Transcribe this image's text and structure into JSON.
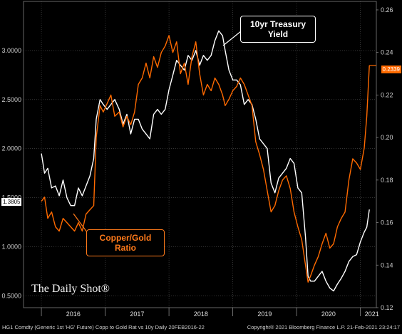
{
  "chart_data": {
    "type": "line",
    "x_years": [
      "2016",
      "2017",
      "2018",
      "2019",
      "2020",
      "2021"
    ],
    "left_axis": {
      "ticks": [
        "0.5000",
        "1.0000",
        "1.5000",
        "2.0000",
        "2.5000",
        "3.0000"
      ],
      "ylim": [
        0.38,
        3.5
      ]
    },
    "right_axis": {
      "ticks": [
        "0.12",
        "0.14",
        "0.16",
        "0.18",
        "0.20",
        "0.22",
        "0.24",
        "0.26"
      ],
      "ylim": [
        0.12,
        0.264
      ]
    },
    "series": [
      {
        "name": "10yr Treasury Yield",
        "axis": "left",
        "color": "#ffffff",
        "last_value": "1.3805",
        "points": [
          [
            2016.0,
            1.95
          ],
          [
            2016.05,
            1.75
          ],
          [
            2016.1,
            1.8
          ],
          [
            2016.16,
            1.6
          ],
          [
            2016.22,
            1.62
          ],
          [
            2016.28,
            1.52
          ],
          [
            2016.34,
            1.68
          ],
          [
            2016.4,
            1.5
          ],
          [
            2016.46,
            1.42
          ],
          [
            2016.52,
            1.42
          ],
          [
            2016.58,
            1.6
          ],
          [
            2016.64,
            1.52
          ],
          [
            2016.7,
            1.62
          ],
          [
            2016.76,
            1.72
          ],
          [
            2016.82,
            1.9
          ],
          [
            2016.86,
            2.3
          ],
          [
            2016.92,
            2.5
          ],
          [
            2016.97,
            2.45
          ],
          [
            2017.03,
            2.4
          ],
          [
            2017.09,
            2.45
          ],
          [
            2017.15,
            2.5
          ],
          [
            2017.22,
            2.4
          ],
          [
            2017.28,
            2.25
          ],
          [
            2017.34,
            2.35
          ],
          [
            2017.4,
            2.15
          ],
          [
            2017.46,
            2.3
          ],
          [
            2017.52,
            2.3
          ],
          [
            2017.58,
            2.2
          ],
          [
            2017.64,
            2.15
          ],
          [
            2017.7,
            2.1
          ],
          [
            2017.76,
            2.35
          ],
          [
            2017.82,
            2.4
          ],
          [
            2017.88,
            2.35
          ],
          [
            2017.94,
            2.4
          ],
          [
            2018.0,
            2.6
          ],
          [
            2018.06,
            2.75
          ],
          [
            2018.12,
            2.9
          ],
          [
            2018.18,
            2.85
          ],
          [
            2018.24,
            2.8
          ],
          [
            2018.3,
            2.95
          ],
          [
            2018.36,
            2.9
          ],
          [
            2018.42,
            3.0
          ],
          [
            2018.48,
            2.85
          ],
          [
            2018.54,
            2.95
          ],
          [
            2018.6,
            2.9
          ],
          [
            2018.66,
            2.95
          ],
          [
            2018.72,
            3.1
          ],
          [
            2018.78,
            3.2
          ],
          [
            2018.84,
            3.15
          ],
          [
            2018.88,
            3.0
          ],
          [
            2018.94,
            2.8
          ],
          [
            2019.0,
            2.7
          ],
          [
            2019.06,
            2.7
          ],
          [
            2019.12,
            2.65
          ],
          [
            2019.18,
            2.45
          ],
          [
            2019.24,
            2.5
          ],
          [
            2019.3,
            2.45
          ],
          [
            2019.36,
            2.3
          ],
          [
            2019.42,
            2.1
          ],
          [
            2019.48,
            2.05
          ],
          [
            2019.54,
            2.0
          ],
          [
            2019.6,
            1.65
          ],
          [
            2019.66,
            1.55
          ],
          [
            2019.72,
            1.7
          ],
          [
            2019.78,
            1.75
          ],
          [
            2019.84,
            1.8
          ],
          [
            2019.9,
            1.9
          ],
          [
            2019.96,
            1.85
          ],
          [
            2020.02,
            1.6
          ],
          [
            2020.08,
            1.55
          ],
          [
            2020.14,
            1.1
          ],
          [
            2020.18,
            0.7
          ],
          [
            2020.22,
            0.65
          ],
          [
            2020.28,
            0.65
          ],
          [
            2020.34,
            0.7
          ],
          [
            2020.4,
            0.75
          ],
          [
            2020.46,
            0.65
          ],
          [
            2020.52,
            0.58
          ],
          [
            2020.58,
            0.55
          ],
          [
            2020.64,
            0.62
          ],
          [
            2020.7,
            0.68
          ],
          [
            2020.76,
            0.75
          ],
          [
            2020.82,
            0.85
          ],
          [
            2020.88,
            0.9
          ],
          [
            2020.94,
            0.92
          ],
          [
            2021.0,
            1.05
          ],
          [
            2021.06,
            1.15
          ],
          [
            2021.1,
            1.2
          ],
          [
            2021.14,
            1.38
          ]
        ]
      },
      {
        "name": "Copper/Gold Ratio",
        "axis": "right",
        "color": "#ff6a00",
        "last_value": "0.2339",
        "points": [
          [
            2016.0,
            0.17
          ],
          [
            2016.05,
            0.172
          ],
          [
            2016.1,
            0.162
          ],
          [
            2016.16,
            0.165
          ],
          [
            2016.22,
            0.158
          ],
          [
            2016.28,
            0.156
          ],
          [
            2016.34,
            0.162
          ],
          [
            2016.4,
            0.16
          ],
          [
            2016.46,
            0.158
          ],
          [
            2016.52,
            0.156
          ],
          [
            2016.58,
            0.16
          ],
          [
            2016.64,
            0.156
          ],
          [
            2016.7,
            0.164
          ],
          [
            2016.76,
            0.166
          ],
          [
            2016.82,
            0.168
          ],
          [
            2016.86,
            0.2
          ],
          [
            2016.92,
            0.215
          ],
          [
            2016.97,
            0.212
          ],
          [
            2017.03,
            0.216
          ],
          [
            2017.09,
            0.22
          ],
          [
            2017.15,
            0.21
          ],
          [
            2017.22,
            0.212
          ],
          [
            2017.28,
            0.205
          ],
          [
            2017.34,
            0.21
          ],
          [
            2017.4,
            0.206
          ],
          [
            2017.46,
            0.212
          ],
          [
            2017.52,
            0.225
          ],
          [
            2017.58,
            0.228
          ],
          [
            2017.64,
            0.235
          ],
          [
            2017.7,
            0.228
          ],
          [
            2017.76,
            0.238
          ],
          [
            2017.82,
            0.233
          ],
          [
            2017.88,
            0.24
          ],
          [
            2017.94,
            0.243
          ],
          [
            2018.0,
            0.248
          ],
          [
            2018.06,
            0.24
          ],
          [
            2018.12,
            0.245
          ],
          [
            2018.18,
            0.23
          ],
          [
            2018.24,
            0.235
          ],
          [
            2018.3,
            0.225
          ],
          [
            2018.36,
            0.238
          ],
          [
            2018.42,
            0.245
          ],
          [
            2018.48,
            0.23
          ],
          [
            2018.54,
            0.22
          ],
          [
            2018.6,
            0.225
          ],
          [
            2018.66,
            0.222
          ],
          [
            2018.72,
            0.228
          ],
          [
            2018.78,
            0.225
          ],
          [
            2018.84,
            0.22
          ],
          [
            2018.88,
            0.215
          ],
          [
            2018.94,
            0.218
          ],
          [
            2019.0,
            0.222
          ],
          [
            2019.06,
            0.224
          ],
          [
            2019.12,
            0.228
          ],
          [
            2019.18,
            0.225
          ],
          [
            2019.24,
            0.22
          ],
          [
            2019.3,
            0.215
          ],
          [
            2019.36,
            0.198
          ],
          [
            2019.42,
            0.192
          ],
          [
            2019.48,
            0.185
          ],
          [
            2019.54,
            0.175
          ],
          [
            2019.6,
            0.165
          ],
          [
            2019.66,
            0.168
          ],
          [
            2019.72,
            0.175
          ],
          [
            2019.78,
            0.18
          ],
          [
            2019.84,
            0.182
          ],
          [
            2019.9,
            0.176
          ],
          [
            2019.96,
            0.165
          ],
          [
            2020.02,
            0.158
          ],
          [
            2020.08,
            0.152
          ],
          [
            2020.14,
            0.14
          ],
          [
            2020.18,
            0.132
          ],
          [
            2020.22,
            0.135
          ],
          [
            2020.28,
            0.14
          ],
          [
            2020.34,
            0.144
          ],
          [
            2020.4,
            0.15
          ],
          [
            2020.46,
            0.155
          ],
          [
            2020.52,
            0.148
          ],
          [
            2020.58,
            0.15
          ],
          [
            2020.64,
            0.158
          ],
          [
            2020.7,
            0.162
          ],
          [
            2020.76,
            0.165
          ],
          [
            2020.82,
            0.18
          ],
          [
            2020.88,
            0.19
          ],
          [
            2020.94,
            0.188
          ],
          [
            2021.0,
            0.185
          ],
          [
            2021.06,
            0.195
          ],
          [
            2021.1,
            0.21
          ],
          [
            2021.14,
            0.2339
          ]
        ]
      }
    ],
    "annotations": [
      {
        "text_lines": [
          "10yr Treasury",
          "Yield"
        ]
      },
      {
        "text_lines": [
          "Copper/Gold",
          "Ratio"
        ]
      }
    ],
    "grid": true,
    "legend": "none"
  },
  "branding": {
    "logo": "The Daily Shot®"
  },
  "footer": {
    "left": "HG1 Comdty (Generic 1st 'HG' Future) Copp to Gold Rat vs 10y  Daily 20FEB2016-22",
    "right": "Copyright® 2021 Bloomberg Finance L.P.          21-Feb-2021 23:24:17"
  },
  "colors": {
    "background": "#000000",
    "treasury": "#ffffff",
    "copper_gold": "#ff6a00",
    "grid": "#555555"
  }
}
